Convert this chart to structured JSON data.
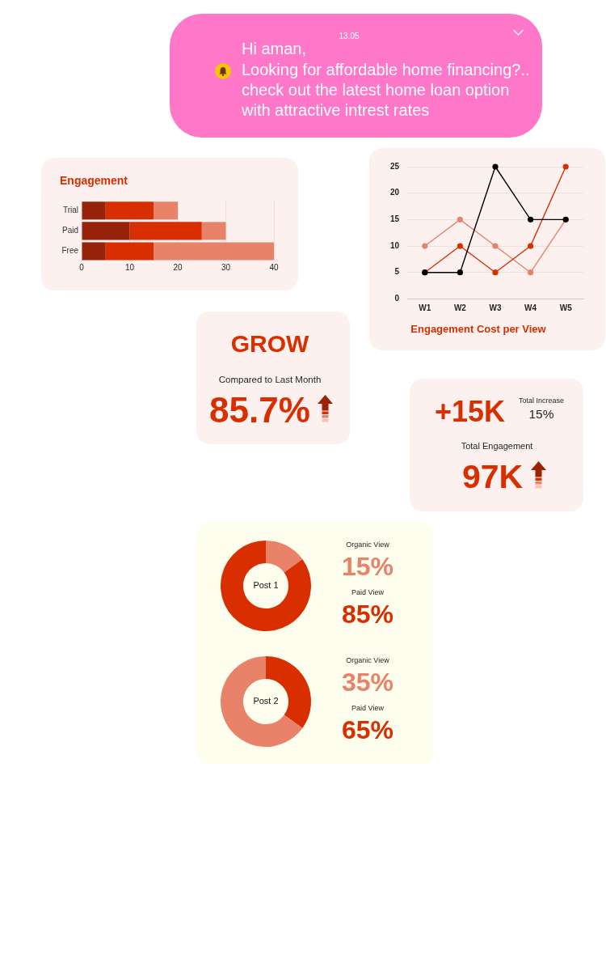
{
  "chart_data": [
    {
      "type": "other",
      "annotations": [
        "13.05",
        "Hi aman,",
        "Looking for affordable home financing?..",
        "check out the latest home loan option",
        "with attractive intrest rates"
      ]
    },
    {
      "type": "bar",
      "title": "Engagement",
      "orientation": "horizontal",
      "stacked": true,
      "categories": [
        "Trial",
        "Paid",
        "Free"
      ],
      "series": [
        {
          "color": "#97230a",
          "values": [
            5,
            10,
            5
          ]
        },
        {
          "color": "#d92e00",
          "values": [
            10,
            15,
            10
          ]
        },
        {
          "color": "#e8836a",
          "values": [
            5,
            5,
            25
          ]
        }
      ],
      "xlim": [
        0,
        40
      ],
      "xticks": [
        0,
        10,
        20,
        30,
        40
      ],
      "grid": "x"
    },
    {
      "type": "line",
      "title": "Engagement Cost per View",
      "categories": [
        "W1",
        "W2",
        "W3",
        "W4",
        "W5"
      ],
      "series": [
        {
          "color": "#000000",
          "values": [
            5,
            5,
            25,
            15,
            15
          ]
        },
        {
          "color": "#d92e00",
          "values": [
            5,
            10,
            5,
            10,
            25
          ]
        },
        {
          "color": "#e8836a",
          "values": [
            10,
            15,
            10,
            5,
            15
          ]
        }
      ],
      "ylim": [
        0,
        25
      ],
      "yticks": [
        0,
        5,
        10,
        15,
        20,
        25
      ],
      "grid": "y",
      "marker": "circle",
      "line_style": "solid"
    },
    {
      "type": "other",
      "title": "GROW",
      "annotations": [
        "Compared to Last Month",
        "85.7%"
      ]
    },
    {
      "type": "other",
      "annotations": [
        "+15K",
        "Total Increase",
        "15%",
        "Total Engagement",
        "97K"
      ]
    },
    {
      "type": "donut",
      "title": "Post 1",
      "categories": [
        "Organic View",
        "Paid View"
      ],
      "values": [
        15,
        85
      ],
      "colors": [
        "#e8836a",
        "#d92e00"
      ],
      "value_labels": [
        "15%",
        "85%"
      ]
    },
    {
      "type": "donut",
      "title": "Post 2",
      "categories": [
        "Organic View",
        "Paid View"
      ],
      "values": [
        35,
        65
      ],
      "colors": [
        "#d92e00",
        "#e8836a"
      ],
      "value_labels": [
        "35%",
        "65%"
      ]
    }
  ]
}
